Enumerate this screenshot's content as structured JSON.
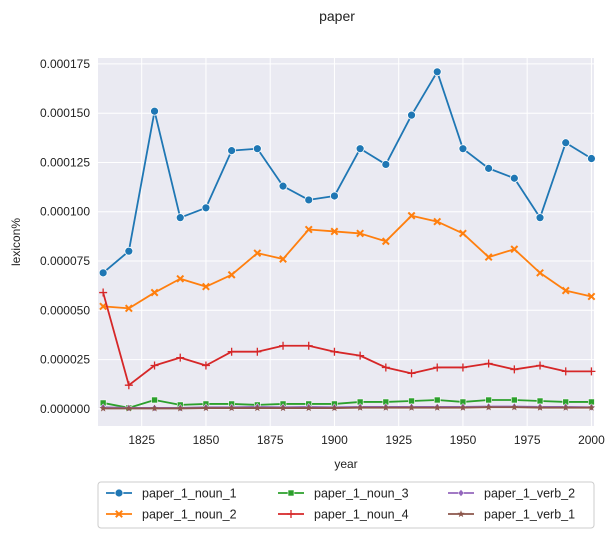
{
  "chart_data": {
    "type": "line",
    "title": "paper",
    "xlabel": "year",
    "ylabel": "lexicon%",
    "xlim": [
      1808,
      2001
    ],
    "ylim": [
      -8.7e-06,
      0.000178
    ],
    "xticks": [
      1825,
      1850,
      1875,
      1900,
      1925,
      1950,
      1975,
      2000
    ],
    "yticks": [
      0.0,
      2.5e-05,
      5e-05,
      7.5e-05,
      0.0001,
      0.000125,
      0.00015,
      0.000175
    ],
    "xtick_labels": [
      "1825",
      "1850",
      "1875",
      "1900",
      "1925",
      "1950",
      "1975",
      "2000"
    ],
    "ytick_labels": [
      "0.000000",
      "0.000025",
      "0.000050",
      "0.000075",
      "0.000100",
      "0.000125",
      "0.000150",
      "0.000175"
    ],
    "grid": true,
    "legend_position": "bottom-outside",
    "x": [
      1810,
      1820,
      1830,
      1840,
      1850,
      1860,
      1870,
      1880,
      1890,
      1900,
      1910,
      1920,
      1930,
      1940,
      1950,
      1960,
      1970,
      1980,
      1990,
      2000
    ],
    "series": [
      {
        "name": "paper_1_noun_1",
        "color": "#1f77b4",
        "marker": "circle",
        "values": [
          6.9e-05,
          8e-05,
          0.000151,
          9.7e-05,
          0.000102,
          0.000131,
          0.000132,
          0.000113,
          0.000106,
          0.000108,
          0.000132,
          0.000124,
          0.000149,
          0.000171,
          0.000132,
          0.000122,
          0.000117,
          9.7e-05,
          0.000135,
          0.000127
        ]
      },
      {
        "name": "paper_1_noun_2",
        "color": "#ff7f0e",
        "marker": "x",
        "values": [
          5.2e-05,
          5.1e-05,
          5.9e-05,
          6.6e-05,
          6.2e-05,
          6.8e-05,
          7.9e-05,
          7.6e-05,
          9.1e-05,
          9e-05,
          8.9e-05,
          8.5e-05,
          9.8e-05,
          9.5e-05,
          8.9e-05,
          7.7e-05,
          8.1e-05,
          6.9e-05,
          6e-05,
          5.7e-05
        ]
      },
      {
        "name": "paper_1_noun_3",
        "color": "#2ca02c",
        "marker": "square",
        "values": [
          3e-06,
          5e-07,
          4.5e-06,
          2e-06,
          2.5e-06,
          2.5e-06,
          2e-06,
          2.5e-06,
          2.5e-06,
          2.5e-06,
          3.5e-06,
          3.5e-06,
          4e-06,
          4.5e-06,
          3.5e-06,
          4.5e-06,
          4.5e-06,
          4e-06,
          3.5e-06,
          3.5e-06
        ]
      },
      {
        "name": "paper_1_noun_4",
        "color": "#d62728",
        "marker": "plus",
        "values": [
          5.9e-05,
          1.2e-05,
          2.2e-05,
          2.6e-05,
          2.2e-05,
          2.9e-05,
          2.9e-05,
          3.2e-05,
          3.2e-05,
          2.9e-05,
          2.7e-05,
          2.1e-05,
          1.8e-05,
          2.1e-05,
          2.1e-05,
          2.3e-05,
          2e-05,
          2.2e-05,
          1.9e-05,
          1.9e-05
        ]
      },
      {
        "name": "paper_1_verb_2",
        "color": "#9467bd",
        "marker": "diamond",
        "values": [
          8e-07,
          5e-07,
          5e-07,
          5e-07,
          8e-07,
          8e-07,
          1e-06,
          8e-07,
          1e-06,
          8e-07,
          1e-06,
          1e-06,
          1e-06,
          1e-06,
          1e-06,
          1.2e-06,
          1.2e-06,
          1e-06,
          1e-06,
          8e-07
        ]
      },
      {
        "name": "paper_1_verb_1",
        "color": "#8c564b",
        "marker": "star",
        "values": [
          2e-07,
          2e-07,
          2e-07,
          2e-07,
          4e-07,
          4e-07,
          4e-07,
          4e-07,
          4e-07,
          4e-07,
          6e-07,
          6e-07,
          6e-07,
          6e-07,
          6e-07,
          8e-07,
          8e-07,
          6e-07,
          6e-07,
          6e-07
        ]
      }
    ]
  }
}
